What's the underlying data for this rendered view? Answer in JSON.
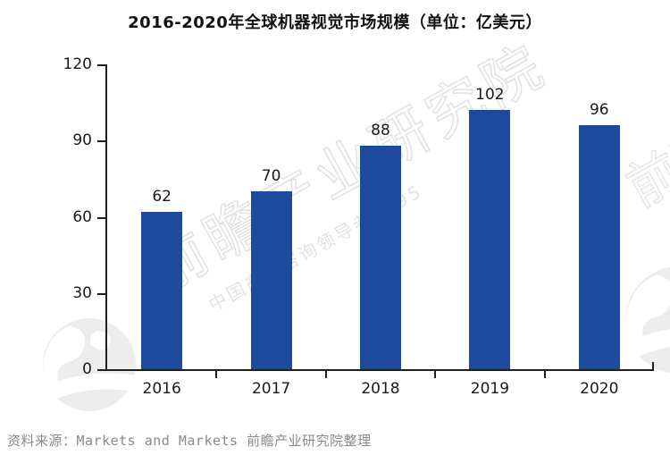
{
  "title": "2016-2020年全球机器视觉市场规模（单位：亿美元）",
  "source": "资料来源：Markets and Markets 前瞻产业研究院整理",
  "colors": {
    "bar": "#1d4a9c",
    "axis": "#1f1f1f",
    "label": "#1a1a1a",
    "watermark": "#e1e1e1",
    "source_text": "#8a8a8a"
  },
  "watermark": {
    "brand": "前瞻产业研究院",
    "tagline": "中国产业咨询领导者8395",
    "edge_brand": "前瞻",
    "globe_icon": "globe"
  },
  "chart_data": {
    "type": "bar",
    "title": "2016-2020年全球机器视觉市场规模（单位：亿美元）",
    "categories": [
      "2016",
      "2017",
      "2018",
      "2019",
      "2020"
    ],
    "values": [
      62,
      70,
      88,
      102,
      96
    ],
    "xlabel": "",
    "ylabel": "",
    "ylim": [
      0,
      120
    ],
    "yticks": [
      0,
      30,
      60,
      90,
      120
    ],
    "grid": false,
    "legend_position": "none",
    "data_labels": true
  }
}
